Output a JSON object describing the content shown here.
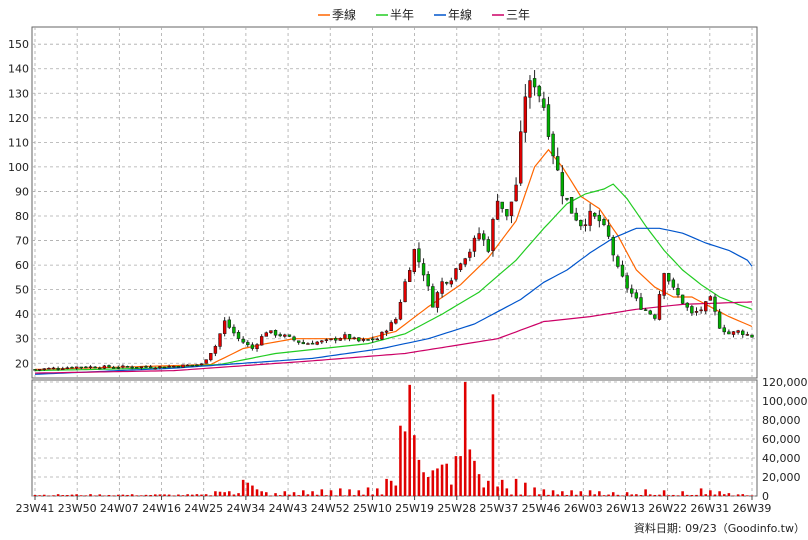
{
  "chart_data": {
    "type": "candlestick",
    "legend": [
      {
        "name": "季線",
        "color": "#ff6600"
      },
      {
        "name": "半年",
        "color": "#22cc22"
      },
      {
        "name": "年線",
        "color": "#0055cc"
      },
      {
        "name": "三年",
        "color": "#cc0066"
      }
    ],
    "legend_position": "top-center",
    "grid": true,
    "colors": {
      "up": "#e00000",
      "down": "#00b000",
      "wick": "#222222",
      "volume": "#e00000"
    },
    "x_axis": {
      "ticks": [
        "23W41",
        "23W50",
        "24W07",
        "24W16",
        "24W25",
        "24W34",
        "24W43",
        "24W52",
        "25W10",
        "25W19",
        "25W28",
        "25W37",
        "25W46",
        "26W03",
        "26W13",
        "26W22",
        "26W31",
        "26W39"
      ],
      "range": [
        "23W41",
        "26W39"
      ],
      "weeks_total": 156
    },
    "price_axis": {
      "ticks": [
        20,
        30,
        40,
        50,
        60,
        70,
        80,
        90,
        100,
        110,
        120,
        130,
        140,
        150
      ],
      "range": [
        14,
        157
      ],
      "side": "left"
    },
    "volume_axis": {
      "ticks": [
        "0",
        "20,000",
        "40,000",
        "60,000",
        "80,000",
        "100,000",
        "120,000"
      ],
      "range": [
        0,
        120000
      ],
      "side": "right"
    },
    "price_anchors": [
      [
        0,
        17.5
      ],
      [
        9,
        18.5
      ],
      [
        18,
        18.5
      ],
      [
        27,
        18.5
      ],
      [
        36,
        19.5
      ],
      [
        39,
        27
      ],
      [
        41,
        37
      ],
      [
        44,
        30
      ],
      [
        47,
        26
      ],
      [
        50,
        33
      ],
      [
        54,
        31
      ],
      [
        58,
        28
      ],
      [
        63,
        29
      ],
      [
        67,
        31
      ],
      [
        70,
        29
      ],
      [
        74,
        30
      ],
      [
        78,
        38
      ],
      [
        80,
        53
      ],
      [
        82,
        66
      ],
      [
        84,
        57
      ],
      [
        86,
        44
      ],
      [
        88,
        53
      ],
      [
        90,
        55
      ],
      [
        92,
        62
      ],
      [
        94,
        66
      ],
      [
        96,
        73
      ],
      [
        98,
        67
      ],
      [
        100,
        88
      ],
      [
        102,
        79
      ],
      [
        104,
        93
      ],
      [
        106,
        130
      ],
      [
        108,
        135
      ],
      [
        110,
        125
      ],
      [
        112,
        106
      ],
      [
        114,
        90
      ],
      [
        116,
        82
      ],
      [
        118,
        77
      ],
      [
        120,
        80
      ],
      [
        122,
        78
      ],
      [
        124,
        71
      ],
      [
        126,
        58
      ],
      [
        128,
        51
      ],
      [
        131,
        43
      ],
      [
        134,
        39
      ],
      [
        136,
        58
      ],
      [
        138,
        50
      ],
      [
        140,
        45
      ],
      [
        142,
        40
      ],
      [
        144,
        42
      ],
      [
        146,
        46
      ],
      [
        148,
        35
      ],
      [
        150,
        32
      ],
      [
        152,
        33
      ],
      [
        155,
        31
      ]
    ],
    "ma_quarter": [
      [
        0,
        17.5
      ],
      [
        20,
        18.5
      ],
      [
        38,
        19.5
      ],
      [
        45,
        26
      ],
      [
        50,
        28
      ],
      [
        56,
        30
      ],
      [
        66,
        30
      ],
      [
        72,
        30
      ],
      [
        78,
        33
      ],
      [
        85,
        43
      ],
      [
        92,
        52
      ],
      [
        98,
        63
      ],
      [
        104,
        78
      ],
      [
        108,
        100
      ],
      [
        111,
        107
      ],
      [
        114,
        100
      ],
      [
        118,
        88
      ],
      [
        122,
        83
      ],
      [
        126,
        72
      ],
      [
        130,
        58
      ],
      [
        134,
        51
      ],
      [
        138,
        47
      ],
      [
        142,
        47
      ],
      [
        146,
        43
      ],
      [
        150,
        39
      ],
      [
        155,
        35
      ]
    ],
    "ma_halfyear": [
      [
        0,
        17
      ],
      [
        25,
        18
      ],
      [
        40,
        19.5
      ],
      [
        52,
        24
      ],
      [
        62,
        26
      ],
      [
        72,
        28
      ],
      [
        80,
        32
      ],
      [
        88,
        40
      ],
      [
        96,
        49
      ],
      [
        104,
        62
      ],
      [
        110,
        75
      ],
      [
        115,
        85
      ],
      [
        119,
        89
      ],
      [
        123,
        91
      ],
      [
        125,
        93
      ],
      [
        128,
        87
      ],
      [
        132,
        76
      ],
      [
        136,
        66
      ],
      [
        140,
        58
      ],
      [
        144,
        52
      ],
      [
        148,
        47
      ],
      [
        152,
        44
      ],
      [
        155,
        42
      ]
    ],
    "ma_year": [
      [
        0,
        15.5
      ],
      [
        30,
        18
      ],
      [
        45,
        20
      ],
      [
        60,
        22
      ],
      [
        75,
        26
      ],
      [
        85,
        30
      ],
      [
        95,
        36
      ],
      [
        105,
        46
      ],
      [
        110,
        53
      ],
      [
        115,
        58
      ],
      [
        120,
        65
      ],
      [
        125,
        71
      ],
      [
        130,
        75
      ],
      [
        135,
        75
      ],
      [
        140,
        73
      ],
      [
        145,
        69
      ],
      [
        150,
        66
      ],
      [
        154,
        62
      ],
      [
        155,
        59.5
      ]
    ],
    "ma_threeyear": [
      [
        0,
        16
      ],
      [
        30,
        17
      ],
      [
        60,
        21
      ],
      [
        80,
        24
      ],
      [
        100,
        30
      ],
      [
        110,
        37
      ],
      [
        120,
        39
      ],
      [
        130,
        42
      ],
      [
        140,
        44
      ],
      [
        155,
        45
      ]
    ],
    "volume_bars": [
      [
        39,
        5000
      ],
      [
        40,
        4500
      ],
      [
        41,
        4000
      ],
      [
        42,
        5000
      ],
      [
        44,
        3000
      ],
      [
        45,
        17000
      ],
      [
        46,
        14000
      ],
      [
        47,
        11000
      ],
      [
        48,
        7000
      ],
      [
        49,
        5000
      ],
      [
        50,
        4000
      ],
      [
        52,
        3000
      ],
      [
        54,
        5000
      ],
      [
        56,
        4000
      ],
      [
        58,
        6000
      ],
      [
        60,
        5000
      ],
      [
        62,
        7000
      ],
      [
        64,
        6000
      ],
      [
        66,
        8000
      ],
      [
        68,
        7000
      ],
      [
        70,
        6000
      ],
      [
        72,
        9000
      ],
      [
        74,
        8000
      ],
      [
        76,
        18000
      ],
      [
        77,
        16000
      ],
      [
        78,
        11000
      ],
      [
        79,
        74000
      ],
      [
        80,
        68000
      ],
      [
        81,
        117000
      ],
      [
        82,
        64000
      ],
      [
        83,
        38000
      ],
      [
        84,
        25000
      ],
      [
        85,
        20000
      ],
      [
        86,
        27000
      ],
      [
        87,
        29000
      ],
      [
        88,
        33000
      ],
      [
        89,
        34000
      ],
      [
        90,
        12000
      ],
      [
        91,
        42000
      ],
      [
        92,
        42000
      ],
      [
        93,
        120000
      ],
      [
        94,
        49000
      ],
      [
        95,
        37000
      ],
      [
        96,
        23000
      ],
      [
        97,
        9000
      ],
      [
        98,
        16000
      ],
      [
        99,
        107000
      ],
      [
        100,
        10000
      ],
      [
        101,
        17000
      ],
      [
        102,
        8000
      ],
      [
        104,
        18000
      ],
      [
        106,
        14000
      ],
      [
        108,
        9000
      ],
      [
        110,
        7000
      ],
      [
        112,
        6000
      ],
      [
        114,
        5000
      ],
      [
        116,
        6000
      ],
      [
        118,
        5000
      ],
      [
        120,
        6000
      ],
      [
        122,
        5000
      ],
      [
        125,
        4000
      ],
      [
        128,
        4000
      ],
      [
        132,
        7000
      ],
      [
        136,
        6000
      ],
      [
        140,
        5000
      ],
      [
        144,
        8000
      ],
      [
        146,
        6000
      ],
      [
        148,
        5000
      ],
      [
        150,
        3000
      ]
    ],
    "footer": "資料日期: 09/23（Goodinfo.tw）"
  }
}
